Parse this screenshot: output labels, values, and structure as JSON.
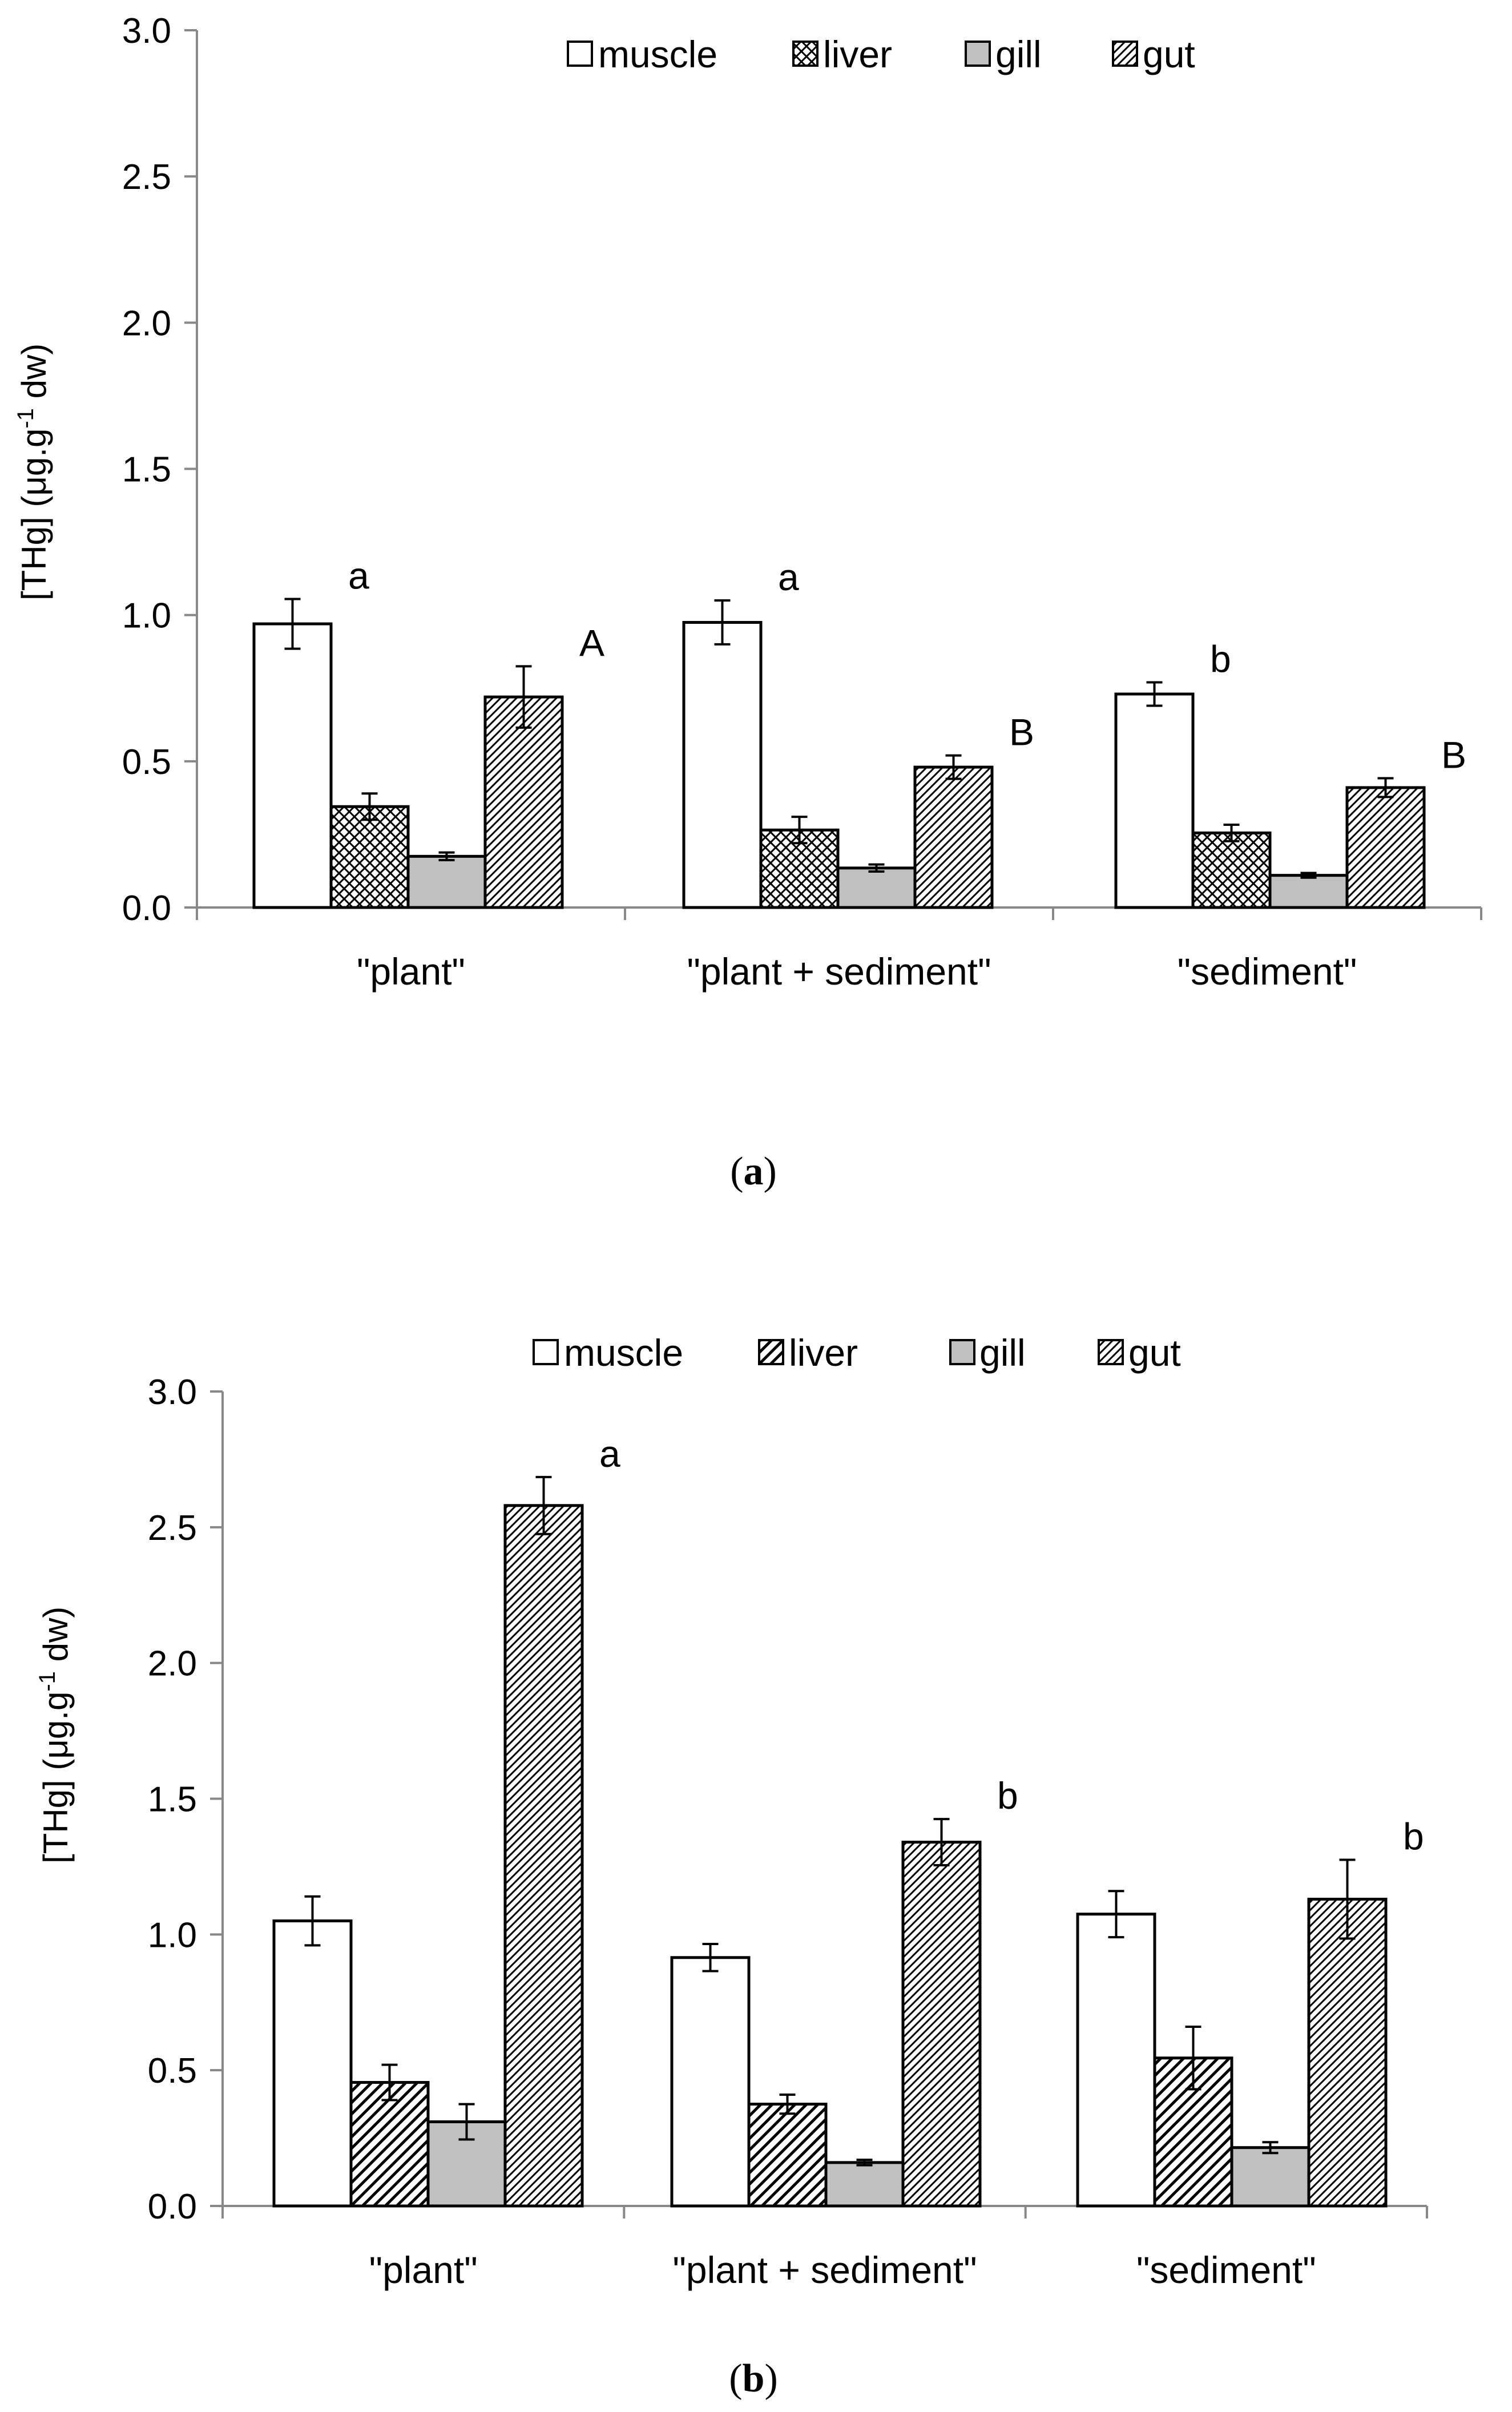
{
  "figure": {
    "panels": [
      {
        "caption_open": "(",
        "caption_label": "a",
        "caption_close": ")",
        "chart_id": "a"
      },
      {
        "caption_open": "(",
        "caption_label": "b",
        "caption_close": ")",
        "chart_id": "b"
      }
    ]
  },
  "colors": {
    "muscle": "#ffffff",
    "liver": "#ffffff",
    "gill": "#c0c0c0",
    "gut": "#ffffff",
    "stroke": "#000000"
  },
  "chart_data": [
    {
      "id": "a",
      "type": "bar",
      "title": "",
      "xlabel": "",
      "ylabel_main": "[THg] (μg.g",
      "ylabel_sup": "-1",
      "ylabel_end": " dw)",
      "ylim": [
        0,
        3.0
      ],
      "yticks": [
        "0.0",
        "0.5",
        "1.0",
        "1.5",
        "2.0",
        "2.5",
        "3.0"
      ],
      "ytick_values": [
        0,
        0.5,
        1.0,
        1.5,
        2.0,
        2.5,
        3.0
      ],
      "grid": false,
      "legend_position": "top",
      "categories": [
        "\"plant\"",
        "\"plant + sediment\"",
        "\"sediment\""
      ],
      "series": [
        {
          "name": "muscle",
          "pattern": "none",
          "values": [
            0.97,
            0.975,
            0.73
          ],
          "errors": [
            0.085,
            0.075,
            0.04
          ],
          "labels": [
            "a",
            "a",
            "b"
          ]
        },
        {
          "name": "liver",
          "pattern": "cross",
          "values": [
            0.345,
            0.265,
            0.255
          ],
          "errors": [
            0.045,
            0.045,
            0.028
          ],
          "labels": [
            "",
            "",
            ""
          ]
        },
        {
          "name": "gill",
          "pattern": "solid",
          "values": [
            0.175,
            0.135,
            0.11
          ],
          "errors": [
            0.013,
            0.012,
            0.008
          ],
          "labels": [
            "",
            "",
            ""
          ]
        },
        {
          "name": "gut",
          "pattern": "diag",
          "values": [
            0.72,
            0.48,
            0.41
          ],
          "errors": [
            0.105,
            0.04,
            0.032
          ],
          "labels": [
            "A",
            "B",
            "B"
          ]
        }
      ]
    },
    {
      "id": "b",
      "type": "bar",
      "title": "",
      "xlabel": "",
      "ylabel_main": "[THg] (μg.g",
      "ylabel_sup": "-1",
      "ylabel_end": " dw)",
      "ylim": [
        0,
        3.0
      ],
      "yticks": [
        "0.0",
        "0.5",
        "1.0",
        "1.5",
        "2.0",
        "2.5",
        "3.0"
      ],
      "ytick_values": [
        0,
        0.5,
        1.0,
        1.5,
        2.0,
        2.5,
        3.0
      ],
      "grid": false,
      "legend_position": "top",
      "categories": [
        "\"plant\"",
        "\"plant + sediment\"",
        "\"sediment\""
      ],
      "series": [
        {
          "name": "muscle",
          "pattern": "none",
          "values": [
            1.05,
            0.915,
            1.075
          ],
          "errors": [
            0.09,
            0.05,
            0.085
          ],
          "labels": [
            "",
            "",
            ""
          ]
        },
        {
          "name": "liver",
          "pattern": "diagthin",
          "values": [
            0.455,
            0.375,
            0.545
          ],
          "errors": [
            0.065,
            0.035,
            0.115
          ],
          "labels": [
            "",
            "",
            ""
          ]
        },
        {
          "name": "gill",
          "pattern": "solid",
          "values": [
            0.31,
            0.16,
            0.215
          ],
          "errors": [
            0.065,
            0.01,
            0.02
          ],
          "labels": [
            "",
            "",
            ""
          ]
        },
        {
          "name": "gut",
          "pattern": "diag",
          "values": [
            2.58,
            1.34,
            1.13
          ],
          "errors": [
            0.105,
            0.085,
            0.145
          ],
          "labels": [
            "a",
            "b",
            "b"
          ]
        }
      ]
    }
  ]
}
